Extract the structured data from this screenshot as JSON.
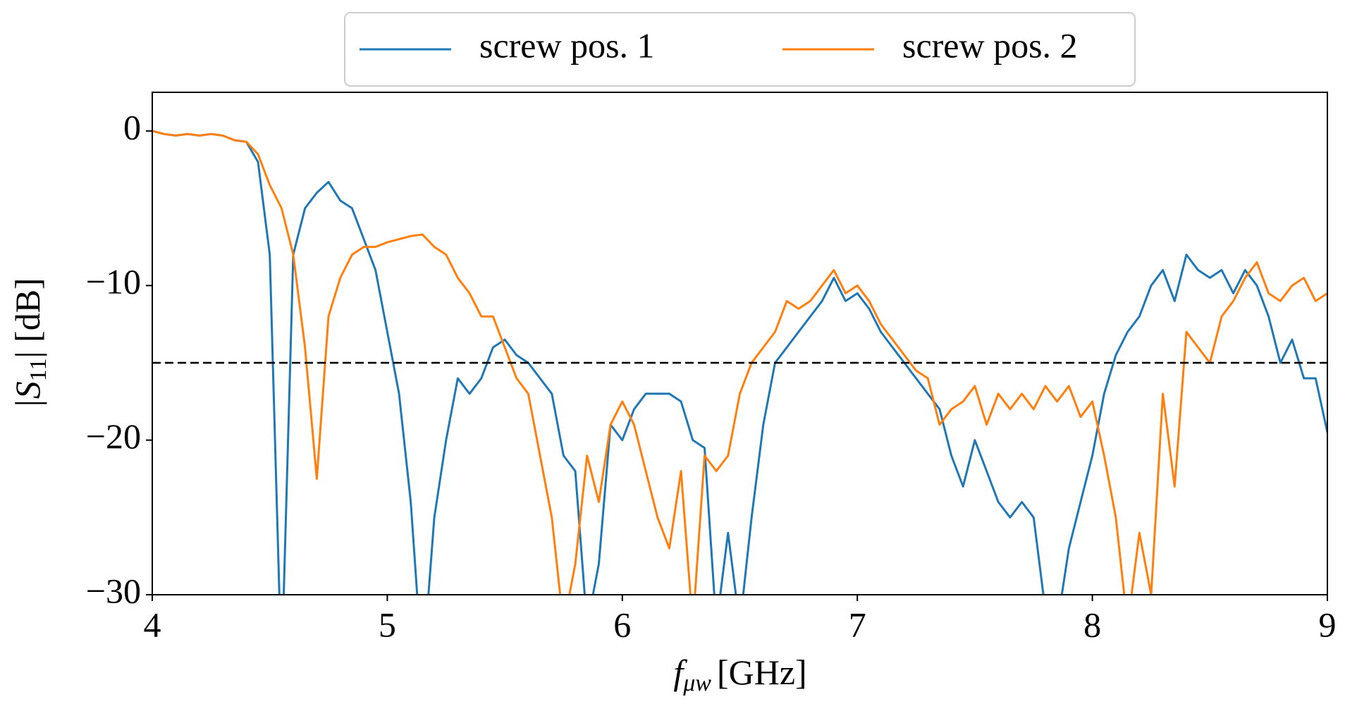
{
  "chart_data": {
    "type": "line",
    "xlabel": {
      "symbol": "f",
      "subscript": "μw",
      "unit": "[GHz]"
    },
    "ylabel": {
      "symbol": "|S",
      "subscript": "11",
      "unit": "| [dB]"
    },
    "legend": "upper center",
    "reference_line": -15,
    "xlim": [
      4,
      9
    ],
    "xticks": [
      4,
      5,
      6,
      7,
      8,
      9
    ],
    "ylim": [
      -30,
      2.5
    ],
    "yticks": [
      {
        "value": -30,
        "label": "−30"
      },
      {
        "value": -20,
        "label": "−20"
      },
      {
        "value": -10,
        "label": "−10"
      },
      0
    ],
    "x": [
      4.0,
      4.05,
      4.1,
      4.15,
      4.2,
      4.25,
      4.3,
      4.35,
      4.4,
      4.45,
      4.5,
      4.55,
      4.6,
      4.65,
      4.7,
      4.75,
      4.8,
      4.85,
      4.9,
      4.95,
      5.0,
      5.05,
      5.1,
      5.15,
      5.2,
      5.25,
      5.3,
      5.35,
      5.4,
      5.45,
      5.5,
      5.55,
      5.6,
      5.65,
      5.7,
      5.75,
      5.8,
      5.85,
      5.9,
      5.95,
      6.0,
      6.05,
      6.1,
      6.15,
      6.2,
      6.25,
      6.3,
      6.35,
      6.4,
      6.45,
      6.5,
      6.55,
      6.6,
      6.65,
      6.7,
      6.75,
      6.8,
      6.85,
      6.9,
      6.95,
      7.0,
      7.05,
      7.1,
      7.15,
      7.2,
      7.25,
      7.3,
      7.35,
      7.4,
      7.45,
      7.5,
      7.55,
      7.6,
      7.65,
      7.7,
      7.75,
      7.8,
      7.85,
      7.9,
      7.95,
      8.0,
      8.05,
      8.1,
      8.15,
      8.2,
      8.25,
      8.3,
      8.35,
      8.4,
      8.45,
      8.5,
      8.55,
      8.6,
      8.65,
      8.7,
      8.75,
      8.8,
      8.85,
      8.9,
      8.95,
      9.0
    ],
    "series": [
      {
        "name": "screw pos. 1",
        "color": "#1f77b4",
        "values": [
          0,
          -0.2,
          -0.3,
          -0.2,
          -0.3,
          -0.2,
          -0.3,
          -0.6,
          -0.7,
          -2,
          -8,
          -35,
          -8,
          -5,
          -4,
          -3.3,
          -4.5,
          -5,
          -7,
          -9,
          -13,
          -17,
          -24,
          -35,
          -25,
          -20,
          -16,
          -17,
          -16,
          -14,
          -13.5,
          -14.5,
          -15,
          -16,
          -17,
          -21,
          -22,
          -32,
          -28,
          -19,
          -20,
          -18,
          -17,
          -17,
          -17,
          -17.5,
          -20,
          -20.5,
          -32,
          -26,
          -32,
          -25,
          -19,
          -15,
          -14,
          -13,
          -12,
          -11,
          -9.5,
          -11,
          -10.5,
          -11.5,
          -13,
          -14,
          -15,
          -16,
          -17,
          -18,
          -21,
          -23,
          -20,
          -22,
          -24,
          -25,
          -24,
          -25,
          -31,
          -32,
          -27,
          -24,
          -21,
          -17,
          -14.5,
          -13,
          -12,
          -10,
          -9,
          -11,
          -8,
          -9,
          -9.5,
          -9,
          -10.5,
          -9,
          -10,
          -12,
          -15,
          -13.5,
          -16,
          -16,
          -19.5
        ]
      },
      {
        "name": "screw pos. 2",
        "color": "#ff7f0e",
        "values": [
          0,
          -0.2,
          -0.3,
          -0.2,
          -0.3,
          -0.2,
          -0.3,
          -0.6,
          -0.7,
          -1.5,
          -3.5,
          -5,
          -8,
          -14,
          -22.5,
          -12,
          -9.5,
          -8,
          -7.5,
          -7.5,
          -7.2,
          -7,
          -6.8,
          -6.7,
          -7.5,
          -8,
          -9.5,
          -10.5,
          -12,
          -12,
          -14,
          -16,
          -17,
          -21,
          -25,
          -32,
          -28,
          -21,
          -24,
          -19,
          -17.5,
          -19,
          -22,
          -25,
          -27,
          -22,
          -32,
          -21,
          -22,
          -21,
          -17,
          -15,
          -14,
          -13,
          -11,
          -11.5,
          -11,
          -10,
          -9,
          -10.5,
          -10,
          -11,
          -12.5,
          -13.5,
          -14.5,
          -15.5,
          -16,
          -19,
          -18,
          -17.5,
          -16.5,
          -19,
          -17,
          -18,
          -17,
          -18,
          -16.5,
          -17.5,
          -16.5,
          -18.5,
          -17.5,
          -21,
          -25,
          -32,
          -26,
          -30,
          -17,
          -23,
          -13,
          -14,
          -15,
          -12,
          -11,
          -9.5,
          -8.5,
          -10.5,
          -11,
          -10,
          -9.5,
          -11,
          -10.5
        ]
      }
    ]
  }
}
